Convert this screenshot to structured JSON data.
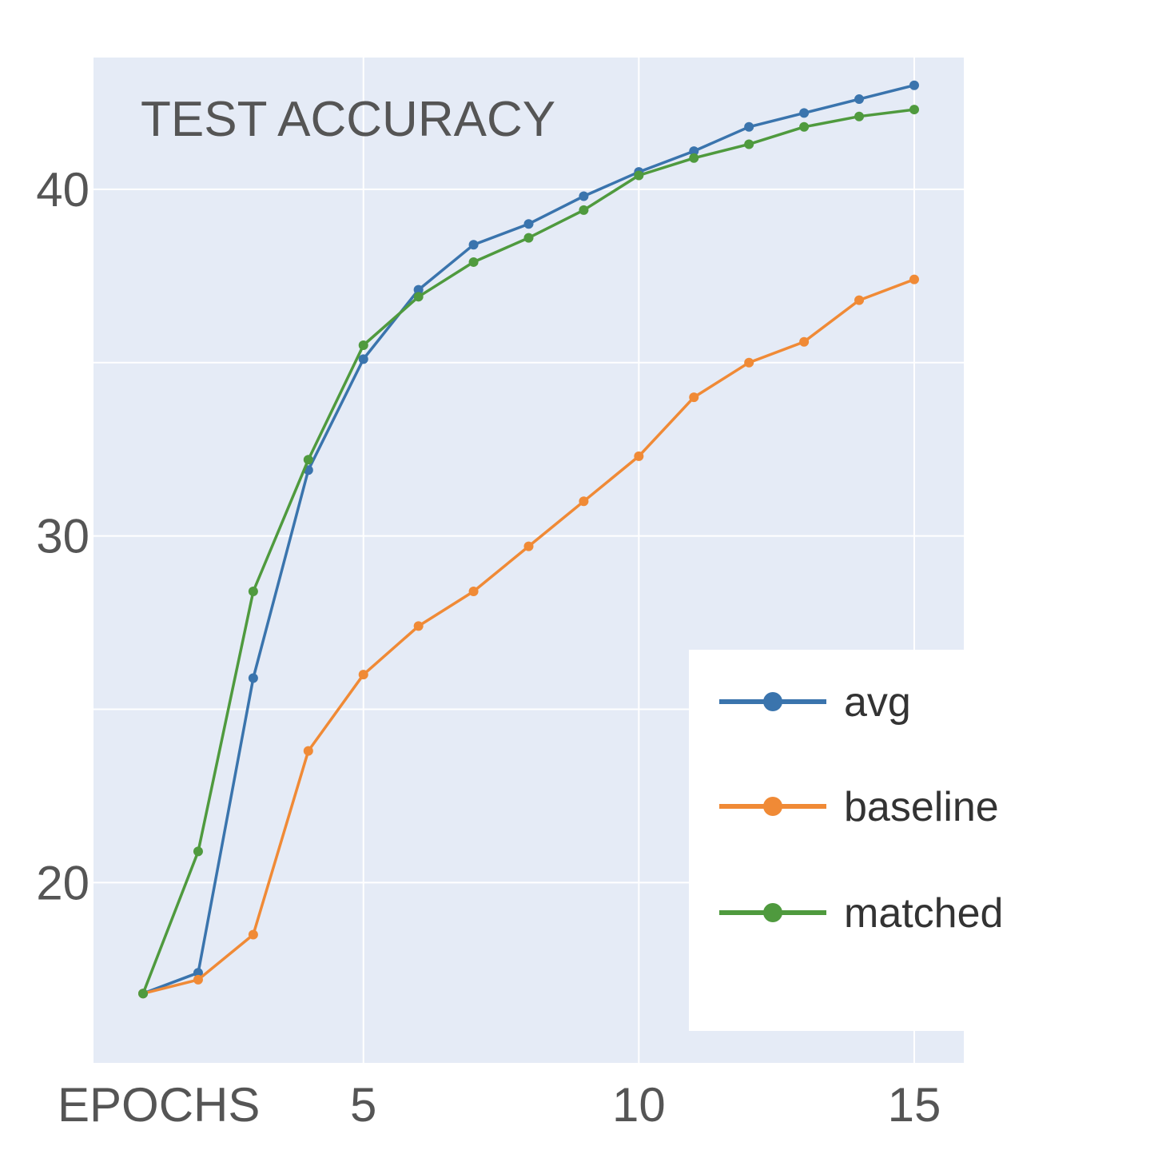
{
  "chart_data": {
    "type": "line",
    "title": "TEST ACCURACY",
    "xlabel": "EPOCHS",
    "ylabel": "",
    "x": [
      1,
      2,
      3,
      4,
      5,
      6,
      7,
      8,
      9,
      10,
      11,
      12,
      13,
      14,
      15
    ],
    "xlim": [
      0.1,
      15.9
    ],
    "ylim": [
      14.8,
      43.8
    ],
    "xticks": [
      5,
      10,
      15
    ],
    "yticks": [
      20,
      30,
      40
    ],
    "grid_y": [
      20,
      25,
      30,
      35,
      40
    ],
    "grid_x": [
      5,
      10,
      15
    ],
    "background_color": "#e5ebf6",
    "grid": true,
    "legend_position": "bottom-right",
    "series": [
      {
        "name": "avg",
        "color": "#3a74ad",
        "values": [
          16.8,
          17.4,
          25.9,
          31.9,
          35.1,
          37.1,
          38.4,
          39.0,
          39.8,
          40.5,
          41.1,
          41.8,
          42.2,
          42.6,
          43.0
        ]
      },
      {
        "name": "baseline",
        "color": "#f08a36",
        "values": [
          16.8,
          17.2,
          18.5,
          23.8,
          26.0,
          27.4,
          28.4,
          29.7,
          31.0,
          32.3,
          34.0,
          35.0,
          35.6,
          36.8,
          37.4
        ]
      },
      {
        "name": "matched",
        "color": "#4f9a3e",
        "values": [
          16.8,
          20.9,
          28.4,
          32.2,
          35.5,
          36.9,
          37.9,
          38.6,
          39.4,
          40.4,
          40.9,
          41.3,
          41.8,
          42.1,
          42.3
        ]
      }
    ]
  }
}
